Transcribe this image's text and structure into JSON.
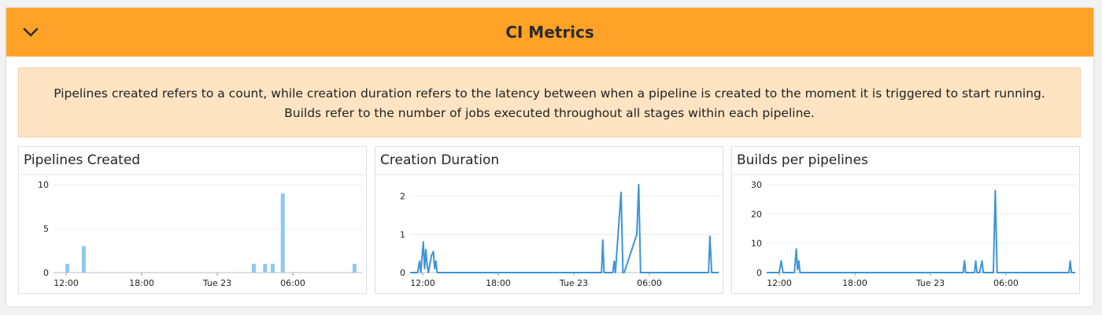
{
  "header": {
    "title": "CI Metrics",
    "collapse_icon": "chevron-down-icon"
  },
  "note": {
    "text": "Pipelines created refers to a count, while creation duration refers to the latency between when a pipeline is created to the moment it is triggered to start running. Builds refer to the number of jobs executed throughout all stages within each pipeline."
  },
  "colors": {
    "header_bg": "#ffa227",
    "note_bg": "#ffe4c3",
    "bar": "#8ec8f2",
    "line": "#3d94d6"
  },
  "chart_data": [
    {
      "type": "bar",
      "title": "Pipelines Created",
      "x_ticks": [
        "12:00",
        "18:00",
        "Tue 23",
        "06:00"
      ],
      "x_tick_hours": [
        12,
        18,
        24,
        30
      ],
      "x_range_hours": [
        11,
        35.5
      ],
      "ylim": [
        0,
        10
      ],
      "y_ticks": [
        0,
        5,
        10
      ],
      "grid": true,
      "points": [
        {
          "x_hour": 12.1,
          "value": 1
        },
        {
          "x_hour": 13.4,
          "value": 3
        },
        {
          "x_hour": 26.9,
          "value": 1
        },
        {
          "x_hour": 27.8,
          "value": 1
        },
        {
          "x_hour": 28.4,
          "value": 1
        },
        {
          "x_hour": 29.2,
          "value": 9
        },
        {
          "x_hour": 34.9,
          "value": 1
        }
      ]
    },
    {
      "type": "line",
      "title": "Creation Duration",
      "x_ticks": [
        "12:00",
        "18:00",
        "Tue 23",
        "06:00"
      ],
      "x_tick_hours": [
        12,
        18,
        24,
        30
      ],
      "x_range_hours": [
        11,
        35.5
      ],
      "ylim": [
        0,
        2.3
      ],
      "y_ticks": [
        0,
        1,
        2
      ],
      "grid": true,
      "points": [
        {
          "x_hour": 11.0,
          "value": 0
        },
        {
          "x_hour": 11.6,
          "value": 0
        },
        {
          "x_hour": 11.75,
          "value": 0.3
        },
        {
          "x_hour": 11.85,
          "value": 0
        },
        {
          "x_hour": 11.95,
          "value": 0.4
        },
        {
          "x_hour": 12.05,
          "value": 0.8
        },
        {
          "x_hour": 12.15,
          "value": 0.1
        },
        {
          "x_hour": 12.25,
          "value": 0.6
        },
        {
          "x_hour": 12.35,
          "value": 0.2
        },
        {
          "x_hour": 12.45,
          "value": 0
        },
        {
          "x_hour": 12.7,
          "value": 0.45
        },
        {
          "x_hour": 12.85,
          "value": 0.55
        },
        {
          "x_hour": 12.95,
          "value": 0.1
        },
        {
          "x_hour": 13.05,
          "value": 0.3
        },
        {
          "x_hour": 13.15,
          "value": 0
        },
        {
          "x_hour": 26.2,
          "value": 0
        },
        {
          "x_hour": 26.3,
          "value": 0.85
        },
        {
          "x_hour": 26.4,
          "value": 0
        },
        {
          "x_hour": 27.1,
          "value": 0
        },
        {
          "x_hour": 27.2,
          "value": 0.3
        },
        {
          "x_hour": 27.3,
          "value": 0
        },
        {
          "x_hour": 27.75,
          "value": 2.1
        },
        {
          "x_hour": 27.9,
          "value": 0
        },
        {
          "x_hour": 28.0,
          "value": 0
        },
        {
          "x_hour": 29.0,
          "value": 1.0
        },
        {
          "x_hour": 29.15,
          "value": 2.3
        },
        {
          "x_hour": 29.3,
          "value": 0
        },
        {
          "x_hour": 34.7,
          "value": 0
        },
        {
          "x_hour": 34.8,
          "value": 0.95
        },
        {
          "x_hour": 34.95,
          "value": 0
        },
        {
          "x_hour": 35.5,
          "value": 0
        }
      ]
    },
    {
      "type": "line",
      "title": "Builds per pipelines",
      "x_ticks": [
        "12:00",
        "18:00",
        "Tue 23",
        "06:00"
      ],
      "x_tick_hours": [
        12,
        18,
        24,
        30
      ],
      "x_range_hours": [
        11,
        35.5
      ],
      "ylim": [
        0,
        30
      ],
      "y_ticks": [
        0,
        10,
        20,
        30
      ],
      "grid": true,
      "points": [
        {
          "x_hour": 11.0,
          "value": 0
        },
        {
          "x_hour": 12.0,
          "value": 0
        },
        {
          "x_hour": 12.15,
          "value": 4
        },
        {
          "x_hour": 12.3,
          "value": 0
        },
        {
          "x_hour": 13.2,
          "value": 0
        },
        {
          "x_hour": 13.35,
          "value": 8
        },
        {
          "x_hour": 13.45,
          "value": 1
        },
        {
          "x_hour": 13.55,
          "value": 4
        },
        {
          "x_hour": 13.65,
          "value": 0
        },
        {
          "x_hour": 26.6,
          "value": 0
        },
        {
          "x_hour": 26.7,
          "value": 4
        },
        {
          "x_hour": 26.8,
          "value": 0
        },
        {
          "x_hour": 27.5,
          "value": 0
        },
        {
          "x_hour": 27.6,
          "value": 4
        },
        {
          "x_hour": 27.7,
          "value": 0
        },
        {
          "x_hour": 27.9,
          "value": 0
        },
        {
          "x_hour": 28.1,
          "value": 4
        },
        {
          "x_hour": 28.2,
          "value": 0
        },
        {
          "x_hour": 29.0,
          "value": 0
        },
        {
          "x_hour": 29.15,
          "value": 28
        },
        {
          "x_hour": 29.3,
          "value": 0
        },
        {
          "x_hour": 35.0,
          "value": 0
        },
        {
          "x_hour": 35.1,
          "value": 4
        },
        {
          "x_hour": 35.2,
          "value": 0
        },
        {
          "x_hour": 35.5,
          "value": 0
        }
      ]
    }
  ]
}
